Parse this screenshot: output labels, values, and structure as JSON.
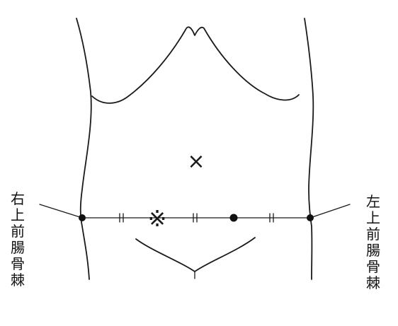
{
  "labels": {
    "right_asis": "右上前腸骨棘",
    "left_asis": "左上前腸骨棘"
  },
  "marks": {
    "upper_cross": "×",
    "lower_asterisk": "※"
  },
  "colors": {
    "ink": "#1a1a1a",
    "background": "#ffffff"
  }
}
